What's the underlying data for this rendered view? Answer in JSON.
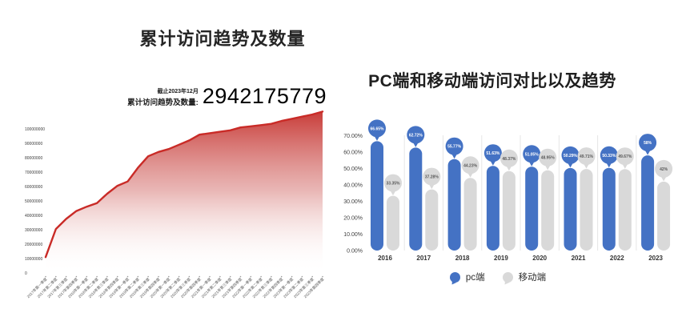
{
  "chart_data": [
    {
      "type": "area",
      "title": "累计访问趋势及数量",
      "annotation": {
        "as_of": "截止2023年12月",
        "label": "累计访问趋势及数量:",
        "value": "2942175779"
      },
      "x": [
        "2017年第一季度",
        "2017年第二季度",
        "2017年第三季度",
        "2017年第四季度",
        "2018年第一季度",
        "2018年第二季度",
        "2018年第三季度",
        "2018年第四季度",
        "2019年第一季度",
        "2019年第二季度",
        "2019年第三季度",
        "2019年第四季度",
        "2020年第一季度",
        "2020年第二季度",
        "2020年第三季度",
        "2020年第四季度",
        "2021年第一季度",
        "2021年第二季度",
        "2021年第三季度",
        "2021年第四季度",
        "2022年第一季度",
        "2022年第二季度",
        "2022年第三季度",
        "2022年第四季度",
        "2023年第一季度",
        "2023年第二季度",
        "2023年第三季度",
        "2023年第四季度"
      ],
      "values": [
        11000000,
        30500000,
        37500000,
        43000000,
        46000000,
        48500000,
        55000000,
        60500000,
        63500000,
        73000000,
        81000000,
        84000000,
        86000000,
        89000000,
        92000000,
        96000000,
        97000000,
        98000000,
        99000000,
        101000000,
        101800000,
        102600000,
        103500000,
        105500000,
        107000000,
        108500000,
        110000000,
        112000000
      ],
      "yticks": [
        0,
        10000000,
        20000000,
        30000000,
        40000000,
        50000000,
        60000000,
        70000000,
        80000000,
        90000000,
        100000000
      ],
      "ylim": [
        0,
        115000000
      ],
      "line_color": "#c92b27",
      "fill_gradient_top": "#c5302c",
      "fill_gradient_bottom": "#ffffff",
      "grid": "off"
    },
    {
      "type": "bar",
      "subtype": "lollipop",
      "title": "PC端和移动端访问对比以及趋势",
      "categories": [
        "2016",
        "2017",
        "2018",
        "2019",
        "2020",
        "2021",
        "2022",
        "2023"
      ],
      "series": [
        {
          "name": "pc端",
          "color": "#4472c4",
          "label_text_color": "#ffffff",
          "values": [
            66.65,
            62.72,
            55.77,
            51.63,
            51.05,
            50.29,
            50.33,
            58
          ],
          "labels": [
            "66.65%",
            "62.72%",
            "55.77%",
            "51.63%",
            "51.05%",
            "50.29%",
            "50.33%",
            "58%"
          ]
        },
        {
          "name": "移动端",
          "color": "#d9d9d9",
          "label_text_color": "#595959",
          "values": [
            33.35,
            37.28,
            44.23,
            48.37,
            48.95,
            49.71,
            49.67,
            42
          ],
          "labels": [
            "33.35%",
            "37.28%",
            "44.23%",
            "48.37%",
            "48.95%",
            "49.71%",
            "49.67%",
            "42%"
          ]
        }
      ],
      "yticks": [
        "0.00%",
        "10.00%",
        "20.00%",
        "30.00%",
        "40.00%",
        "50.00%",
        "60.00%",
        "70.00%"
      ],
      "ylim": [
        0,
        70
      ],
      "legend_position": "bottom",
      "separator_color": "#e6e6e6",
      "grid": "off"
    }
  ]
}
